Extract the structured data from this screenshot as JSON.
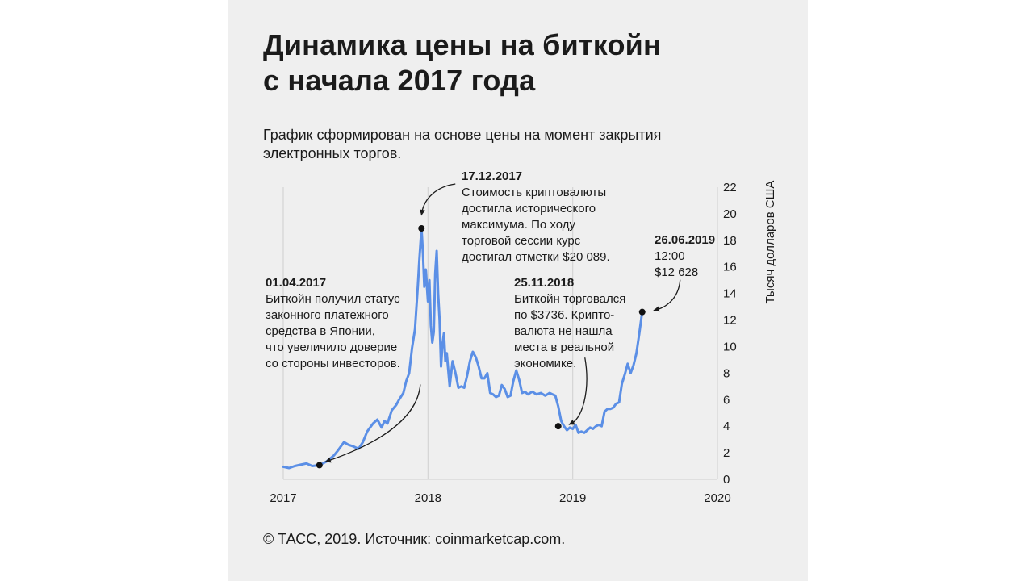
{
  "title_lines": [
    "Динамика цены на биткойн",
    "с начала 2017 года"
  ],
  "subtitle_lines": [
    "График сформирован на основе цены на момент закрытия",
    "электронных торгов."
  ],
  "footer": "© ТАСС, 2019. Источник: coinmarketcap.com.",
  "colors": {
    "line": "#5b8fe6",
    "grid": "#d4d4d4",
    "text": "#1b1b1b",
    "background": "#efefef"
  },
  "chart_data": {
    "type": "line",
    "title": "Динамика цены на биткойн с начала 2017 года",
    "xlabel": "",
    "ylabel": "Тысяч долларов США",
    "xlim": [
      2017,
      2020
    ],
    "ylim": [
      0,
      22
    ],
    "x_ticks": [
      "2017",
      "2018",
      "2019",
      "2020"
    ],
    "y_ticks": [
      "0",
      "2",
      "4",
      "6",
      "8",
      "10",
      "12",
      "14",
      "16",
      "18",
      "20",
      "22"
    ],
    "series": [
      {
        "x": [
          2017.0,
          2017.04,
          2017.08,
          2017.12,
          2017.16,
          2017.2,
          2017.25,
          2017.3,
          2017.35,
          2017.38,
          2017.42,
          2017.45,
          2017.48,
          2017.52,
          2017.55,
          2017.58,
          2017.62,
          2017.65,
          2017.68,
          2017.7,
          2017.72,
          2017.75,
          2017.78,
          2017.8,
          2017.83,
          2017.85,
          2017.87,
          2017.89,
          2017.91,
          2017.93,
          2017.94,
          2017.955,
          2017.965,
          2017.975,
          2017.985,
          2018.0,
          2018.01,
          2018.02,
          2018.03,
          2018.04,
          2018.05,
          2018.06,
          2018.07,
          2018.08,
          2018.09,
          2018.1,
          2018.11,
          2018.12,
          2018.13,
          2018.15,
          2018.17,
          2018.19,
          2018.21,
          2018.23,
          2018.25,
          2018.27,
          2018.29,
          2018.31,
          2018.33,
          2018.35,
          2018.37,
          2018.39,
          2018.41,
          2018.43,
          2018.45,
          2018.47,
          2018.49,
          2018.51,
          2018.53,
          2018.55,
          2018.57,
          2018.59,
          2018.61,
          2018.63,
          2018.65,
          2018.67,
          2018.69,
          2018.72,
          2018.75,
          2018.78,
          2018.81,
          2018.84,
          2018.86,
          2018.88,
          2018.9,
          2018.92,
          2018.94,
          2018.96,
          2018.98,
          2019.0,
          2019.02,
          2019.04,
          2019.06,
          2019.08,
          2019.1,
          2019.12,
          2019.14,
          2019.16,
          2019.18,
          2019.2,
          2019.22,
          2019.24,
          2019.26,
          2019.28,
          2019.3,
          2019.32,
          2019.34,
          2019.36,
          2019.38,
          2019.4,
          2019.42,
          2019.44,
          2019.46,
          2019.48
        ],
        "values": [
          0.95,
          0.85,
          1.0,
          1.1,
          1.2,
          1.0,
          1.07,
          1.35,
          1.8,
          2.2,
          2.8,
          2.6,
          2.5,
          2.3,
          2.8,
          3.6,
          4.2,
          4.5,
          3.9,
          4.4,
          4.2,
          5.2,
          5.6,
          6.0,
          6.5,
          7.4,
          8.0,
          9.9,
          11.3,
          14.6,
          16.5,
          18.9,
          17.0,
          14.5,
          15.8,
          13.4,
          15.0,
          11.6,
          10.3,
          11.1,
          15.5,
          17.2,
          14.0,
          12.0,
          8.5,
          10.2,
          11.0,
          8.9,
          9.5,
          7.0,
          8.9,
          8.0,
          6.9,
          7.0,
          6.9,
          7.8,
          8.9,
          9.6,
          9.2,
          8.5,
          7.6,
          7.6,
          8.0,
          6.5,
          6.4,
          6.2,
          6.3,
          7.1,
          6.8,
          6.2,
          6.3,
          7.4,
          8.2,
          7.5,
          6.5,
          6.6,
          6.4,
          6.6,
          6.4,
          6.5,
          6.3,
          6.5,
          6.4,
          6.3,
          5.5,
          4.4,
          4.0,
          3.7,
          3.9,
          3.8,
          4.1,
          3.5,
          3.6,
          3.5,
          3.7,
          3.9,
          3.8,
          4.0,
          4.1,
          4.0,
          5.1,
          5.3,
          5.3,
          5.4,
          5.7,
          5.8,
          7.2,
          7.9,
          8.7,
          8.0,
          8.6,
          9.5,
          11.0,
          12.6
        ]
      }
    ],
    "annotations": [
      {
        "id": "a2017",
        "x": 2017.25,
        "y": 1.07,
        "lines": [
          "01.04.2017",
          "Биткойн получил статус",
          "законного платежного",
          "средства в Японии,",
          "что увеличило доверие",
          "со стороны инвесторов."
        ]
      },
      {
        "id": "a2017dec",
        "x": 2017.955,
        "y": 18.9,
        "lines": [
          "17.12.2017",
          "Стоимость криптовалюты",
          "достигла исторического",
          "максимума. По ходу",
          "торговой сессии курс",
          "достигал отметки $20 089."
        ]
      },
      {
        "id": "a2018",
        "x": 2018.9,
        "y": 4.0,
        "lines": [
          "25.11.2018",
          "Биткойн торговался",
          "по $3736. Крипто-",
          "валюта не нашла",
          "места в реальной",
          "экономике."
        ]
      },
      {
        "id": "a2019",
        "x": 2019.48,
        "y": 12.6,
        "lines": [
          "26.06.2019",
          "12:00",
          "$12 628"
        ]
      }
    ],
    "grid": true
  }
}
